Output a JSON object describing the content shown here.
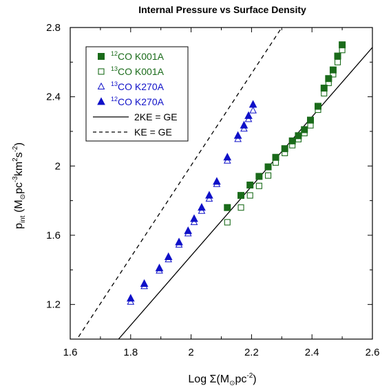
{
  "chart_data": {
    "type": "scatter",
    "title": "Internal Pressure vs Surface Density",
    "xlabel": {
      "main": "Log Σ(M",
      "sub": "⊙",
      "mid": "pc",
      "sup": "-2",
      "end": ")"
    },
    "ylabel": {
      "p": "p",
      "p_sub": "int",
      "open": " (M",
      "sun": "⊙",
      "pc": "pc",
      "pc_sup": "-3",
      "km": "km",
      "km_sup": "2",
      "s": "s",
      "s_sup": "-2",
      "close": ")"
    },
    "xlim": [
      1.6,
      2.6
    ],
    "ylim": [
      1.0,
      2.8
    ],
    "xticks": [
      1.6,
      1.8,
      2.0,
      2.2,
      2.4,
      2.6
    ],
    "xtick_labels": [
      "1.6",
      "1.8",
      "2",
      "2.2",
      "2.4",
      "2.6"
    ],
    "yticks": [
      1.2,
      1.6,
      2.0,
      2.4,
      2.8
    ],
    "ytick_labels": [
      "1.2",
      "1.6",
      "2",
      "2.4",
      "2.8"
    ],
    "grid": false,
    "legend_position": "top-left",
    "colors": {
      "green": "#1a6b1a",
      "blue": "#0f10c8",
      "line": "#000000"
    },
    "series": [
      {
        "name_sup": "12",
        "name": "CO K001A",
        "marker": "square-filled",
        "color": "#1a6b1a",
        "x": [
          2.12,
          2.165,
          2.195,
          2.225,
          2.255,
          2.28,
          2.31,
          2.335,
          2.355,
          2.375,
          2.395,
          2.42,
          2.44,
          2.455,
          2.47,
          2.485,
          2.5
        ],
        "y": [
          1.76,
          1.83,
          1.89,
          1.94,
          1.995,
          2.05,
          2.1,
          2.145,
          2.175,
          2.21,
          2.265,
          2.345,
          2.45,
          2.505,
          2.555,
          2.635,
          2.7
        ]
      },
      {
        "name_sup": "13",
        "name": "CO K001A",
        "marker": "square-open",
        "color": "#1a6b1a",
        "x": [
          2.12,
          2.165,
          2.195,
          2.225,
          2.255,
          2.28,
          2.31,
          2.335,
          2.355,
          2.375,
          2.395,
          2.42,
          2.44,
          2.455,
          2.47,
          2.485,
          2.5
        ],
        "y": [
          1.675,
          1.76,
          1.83,
          1.885,
          1.945,
          2.02,
          2.075,
          2.12,
          2.155,
          2.19,
          2.235,
          2.325,
          2.42,
          2.48,
          2.53,
          2.6,
          2.67
        ]
      },
      {
        "name_sup": "13",
        "name": "CO K270A",
        "marker": "triangle-open",
        "color": "#0f10c8",
        "x": [
          1.8,
          1.845,
          1.895,
          1.925,
          1.96,
          1.99,
          2.01,
          2.035,
          2.06,
          2.085,
          2.12,
          2.155,
          2.175,
          2.19,
          2.205
        ],
        "y": [
          1.215,
          1.305,
          1.395,
          1.46,
          1.545,
          1.61,
          1.675,
          1.74,
          1.81,
          1.895,
          2.03,
          2.155,
          2.215,
          2.27,
          2.32
        ]
      },
      {
        "name_sup": "12",
        "name": "CO K270A",
        "marker": "triangle-filled",
        "color": "#0f10c8",
        "x": [
          1.8,
          1.845,
          1.895,
          1.925,
          1.96,
          1.99,
          2.01,
          2.035,
          2.06,
          2.085,
          2.12,
          2.155,
          2.175,
          2.19,
          2.205
        ],
        "y": [
          1.235,
          1.32,
          1.41,
          1.475,
          1.56,
          1.625,
          1.695,
          1.76,
          1.83,
          1.91,
          2.05,
          2.175,
          2.235,
          2.29,
          2.355
        ]
      },
      {
        "name": "2KE = GE",
        "marker": "line-solid",
        "color": "#000000",
        "x": [
          1.76,
          2.6
        ],
        "y": [
          1.0,
          2.685
        ]
      },
      {
        "name": "KE = GE",
        "marker": "line-dashed",
        "color": "#000000",
        "x": [
          1.6,
          2.3
        ],
        "y": [
          0.94,
          2.8
        ]
      }
    ]
  }
}
